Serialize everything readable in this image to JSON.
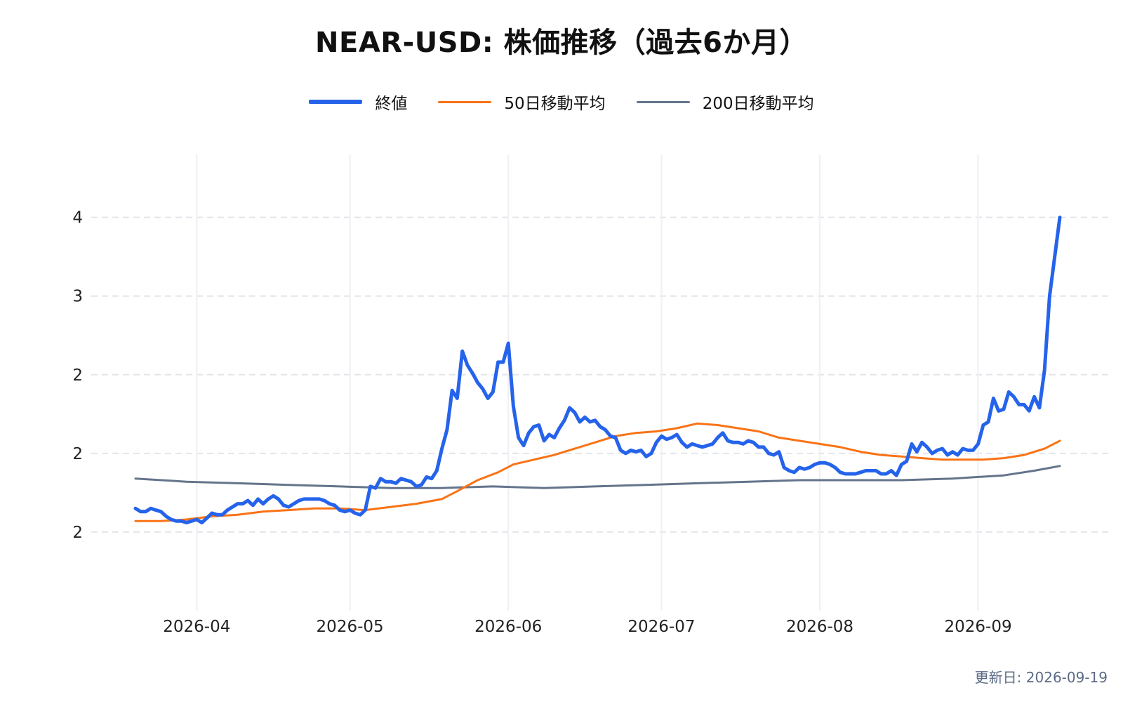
{
  "title": "NEAR-USD: 株価推移（過去6か月）",
  "updated": "更新日: 2026-09-19",
  "legend": [
    {
      "label": "終値",
      "color": "#2563eb"
    },
    {
      "label": "50日移動平均",
      "color": "#f97316"
    },
    {
      "label": "200日移動平均",
      "color": "#64748b"
    }
  ],
  "chart_data": {
    "type": "line",
    "title": "NEAR-USD: 株価推移（過去6か月）",
    "xlabel": "",
    "ylabel": "",
    "x_ticks": [
      "2026-04",
      "2026-05",
      "2026-06",
      "2026-07",
      "2026-08",
      "2026-09"
    ],
    "y_tick_labels": [
      "2",
      "2",
      "2",
      "3",
      "4"
    ],
    "y_tick_values": [
      1.5,
      2.0,
      2.5,
      3.0,
      3.5
    ],
    "ylim": [
      1.0,
      3.9
    ],
    "grid": true,
    "legend_position": "top-center",
    "series": [
      {
        "name": "終値",
        "color": "#2563eb",
        "points": [
          [
            "2026-03-20",
            1.65
          ],
          [
            "2026-03-21",
            1.63
          ],
          [
            "2026-03-22",
            1.63
          ],
          [
            "2026-03-23",
            1.65
          ],
          [
            "2026-03-24",
            1.64
          ],
          [
            "2026-03-25",
            1.63
          ],
          [
            "2026-03-26",
            1.6
          ],
          [
            "2026-03-27",
            1.58
          ],
          [
            "2026-03-28",
            1.57
          ],
          [
            "2026-03-29",
            1.57
          ],
          [
            "2026-03-30",
            1.56
          ],
          [
            "2026-03-31",
            1.57
          ],
          [
            "2026-04-01",
            1.58
          ],
          [
            "2026-04-02",
            1.56
          ],
          [
            "2026-04-03",
            1.59
          ],
          [
            "2026-04-04",
            1.62
          ],
          [
            "2026-04-05",
            1.61
          ],
          [
            "2026-04-06",
            1.61
          ],
          [
            "2026-04-07",
            1.64
          ],
          [
            "2026-04-08",
            1.66
          ],
          [
            "2026-04-09",
            1.68
          ],
          [
            "2026-04-10",
            1.68
          ],
          [
            "2026-04-11",
            1.7
          ],
          [
            "2026-04-12",
            1.67
          ],
          [
            "2026-04-13",
            1.71
          ],
          [
            "2026-04-14",
            1.68
          ],
          [
            "2026-04-15",
            1.71
          ],
          [
            "2026-04-16",
            1.73
          ],
          [
            "2026-04-17",
            1.71
          ],
          [
            "2026-04-18",
            1.67
          ],
          [
            "2026-04-19",
            1.66
          ],
          [
            "2026-04-20",
            1.68
          ],
          [
            "2026-04-21",
            1.7
          ],
          [
            "2026-04-22",
            1.71
          ],
          [
            "2026-04-23",
            1.71
          ],
          [
            "2026-04-24",
            1.71
          ],
          [
            "2026-04-25",
            1.71
          ],
          [
            "2026-04-26",
            1.7
          ],
          [
            "2026-04-27",
            1.68
          ],
          [
            "2026-04-28",
            1.67
          ],
          [
            "2026-04-29",
            1.64
          ],
          [
            "2026-04-30",
            1.63
          ],
          [
            "2026-05-01",
            1.64
          ],
          [
            "2026-05-02",
            1.62
          ],
          [
            "2026-05-03",
            1.61
          ],
          [
            "2026-05-04",
            1.64
          ],
          [
            "2026-05-05",
            1.79
          ],
          [
            "2026-05-06",
            1.78
          ],
          [
            "2026-05-07",
            1.84
          ],
          [
            "2026-05-08",
            1.82
          ],
          [
            "2026-05-09",
            1.82
          ],
          [
            "2026-05-10",
            1.81
          ],
          [
            "2026-05-11",
            1.84
          ],
          [
            "2026-05-12",
            1.83
          ],
          [
            "2026-05-13",
            1.82
          ],
          [
            "2026-05-14",
            1.79
          ],
          [
            "2026-05-15",
            1.8
          ],
          [
            "2026-05-16",
            1.85
          ],
          [
            "2026-05-17",
            1.84
          ],
          [
            "2026-05-18",
            1.89
          ],
          [
            "2026-05-19",
            2.03
          ],
          [
            "2026-05-20",
            2.15
          ],
          [
            "2026-05-21",
            2.4
          ],
          [
            "2026-05-22",
            2.35
          ],
          [
            "2026-05-23",
            2.65
          ],
          [
            "2026-05-24",
            2.56
          ],
          [
            "2026-05-25",
            2.51
          ],
          [
            "2026-05-26",
            2.45
          ],
          [
            "2026-05-27",
            2.41
          ],
          [
            "2026-05-28",
            2.35
          ],
          [
            "2026-05-29",
            2.39
          ],
          [
            "2026-05-30",
            2.58
          ],
          [
            "2026-05-31",
            2.58
          ],
          [
            "2026-06-01",
            2.7
          ],
          [
            "2026-06-02",
            2.3
          ],
          [
            "2026-06-03",
            2.1
          ],
          [
            "2026-06-04",
            2.05
          ],
          [
            "2026-06-05",
            2.13
          ],
          [
            "2026-06-06",
            2.17
          ],
          [
            "2026-06-07",
            2.18
          ],
          [
            "2026-06-08",
            2.08
          ],
          [
            "2026-06-09",
            2.12
          ],
          [
            "2026-06-10",
            2.1
          ],
          [
            "2026-06-11",
            2.16
          ],
          [
            "2026-06-12",
            2.21
          ],
          [
            "2026-06-13",
            2.29
          ],
          [
            "2026-06-14",
            2.26
          ],
          [
            "2026-06-15",
            2.2
          ],
          [
            "2026-06-16",
            2.23
          ],
          [
            "2026-06-17",
            2.2
          ],
          [
            "2026-06-18",
            2.21
          ],
          [
            "2026-06-19",
            2.17
          ],
          [
            "2026-06-20",
            2.15
          ],
          [
            "2026-06-21",
            2.11
          ],
          [
            "2026-06-22",
            2.1
          ],
          [
            "2026-06-23",
            2.02
          ],
          [
            "2026-06-24",
            2.0
          ],
          [
            "2026-06-25",
            2.02
          ],
          [
            "2026-06-26",
            2.01
          ],
          [
            "2026-06-27",
            2.02
          ],
          [
            "2026-06-28",
            1.98
          ],
          [
            "2026-06-29",
            2.0
          ],
          [
            "2026-06-30",
            2.07
          ],
          [
            "2026-07-01",
            2.11
          ],
          [
            "2026-07-02",
            2.09
          ],
          [
            "2026-07-03",
            2.1
          ],
          [
            "2026-07-04",
            2.12
          ],
          [
            "2026-07-05",
            2.07
          ],
          [
            "2026-07-06",
            2.04
          ],
          [
            "2026-07-07",
            2.06
          ],
          [
            "2026-07-08",
            2.05
          ],
          [
            "2026-07-09",
            2.04
          ],
          [
            "2026-07-10",
            2.05
          ],
          [
            "2026-07-11",
            2.06
          ],
          [
            "2026-07-12",
            2.1
          ],
          [
            "2026-07-13",
            2.13
          ],
          [
            "2026-07-14",
            2.08
          ],
          [
            "2026-07-15",
            2.07
          ],
          [
            "2026-07-16",
            2.07
          ],
          [
            "2026-07-17",
            2.06
          ],
          [
            "2026-07-18",
            2.08
          ],
          [
            "2026-07-19",
            2.07
          ],
          [
            "2026-07-20",
            2.04
          ],
          [
            "2026-07-21",
            2.04
          ],
          [
            "2026-07-22",
            2.0
          ],
          [
            "2026-07-23",
            1.99
          ],
          [
            "2026-07-24",
            2.01
          ],
          [
            "2026-07-25",
            1.91
          ],
          [
            "2026-07-26",
            1.89
          ],
          [
            "2026-07-27",
            1.88
          ],
          [
            "2026-07-28",
            1.91
          ],
          [
            "2026-07-29",
            1.9
          ],
          [
            "2026-07-30",
            1.91
          ],
          [
            "2026-07-31",
            1.93
          ],
          [
            "2026-08-01",
            1.94
          ],
          [
            "2026-08-02",
            1.94
          ],
          [
            "2026-08-03",
            1.93
          ],
          [
            "2026-08-04",
            1.91
          ],
          [
            "2026-08-05",
            1.88
          ],
          [
            "2026-08-06",
            1.87
          ],
          [
            "2026-08-07",
            1.87
          ],
          [
            "2026-08-08",
            1.87
          ],
          [
            "2026-08-09",
            1.88
          ],
          [
            "2026-08-10",
            1.89
          ],
          [
            "2026-08-11",
            1.89
          ],
          [
            "2026-08-12",
            1.89
          ],
          [
            "2026-08-13",
            1.87
          ],
          [
            "2026-08-14",
            1.87
          ],
          [
            "2026-08-15",
            1.89
          ],
          [
            "2026-08-16",
            1.86
          ],
          [
            "2026-08-17",
            1.93
          ],
          [
            "2026-08-18",
            1.95
          ],
          [
            "2026-08-19",
            2.06
          ],
          [
            "2026-08-20",
            2.01
          ],
          [
            "2026-08-21",
            2.07
          ],
          [
            "2026-08-22",
            2.04
          ],
          [
            "2026-08-23",
            2.0
          ],
          [
            "2026-08-24",
            2.02
          ],
          [
            "2026-08-25",
            2.03
          ],
          [
            "2026-08-26",
            1.99
          ],
          [
            "2026-08-27",
            2.01
          ],
          [
            "2026-08-28",
            1.99
          ],
          [
            "2026-08-29",
            2.03
          ],
          [
            "2026-08-30",
            2.02
          ],
          [
            "2026-08-31",
            2.02
          ],
          [
            "2026-09-01",
            2.06
          ],
          [
            "2026-09-02",
            2.18
          ],
          [
            "2026-09-03",
            2.2
          ],
          [
            "2026-09-04",
            2.35
          ],
          [
            "2026-09-05",
            2.27
          ],
          [
            "2026-09-06",
            2.28
          ],
          [
            "2026-09-07",
            2.39
          ],
          [
            "2026-09-08",
            2.36
          ],
          [
            "2026-09-09",
            2.31
          ],
          [
            "2026-09-10",
            2.31
          ],
          [
            "2026-09-11",
            2.27
          ],
          [
            "2026-09-12",
            2.36
          ],
          [
            "2026-09-13",
            2.29
          ],
          [
            "2026-09-14",
            2.53
          ],
          [
            "2026-09-15",
            3.0
          ],
          [
            "2026-09-16",
            3.25
          ],
          [
            "2026-09-17",
            3.5
          ]
        ]
      },
      {
        "name": "50日移動平均",
        "color": "#f97316",
        "points": [
          [
            "2026-03-20",
            1.57
          ],
          [
            "2026-03-25",
            1.57
          ],
          [
            "2026-03-30",
            1.58
          ],
          [
            "2026-04-04",
            1.6
          ],
          [
            "2026-04-09",
            1.61
          ],
          [
            "2026-04-14",
            1.63
          ],
          [
            "2026-04-19",
            1.64
          ],
          [
            "2026-04-24",
            1.65
          ],
          [
            "2026-04-29",
            1.65
          ],
          [
            "2026-05-04",
            1.64
          ],
          [
            "2026-05-09",
            1.66
          ],
          [
            "2026-05-14",
            1.68
          ],
          [
            "2026-05-19",
            1.71
          ],
          [
            "2026-05-22",
            1.76
          ],
          [
            "2026-05-26",
            1.83
          ],
          [
            "2026-05-30",
            1.88
          ],
          [
            "2026-06-02",
            1.93
          ],
          [
            "2026-06-06",
            1.96
          ],
          [
            "2026-06-10",
            1.99
          ],
          [
            "2026-06-14",
            2.03
          ],
          [
            "2026-06-18",
            2.07
          ],
          [
            "2026-06-22",
            2.11
          ],
          [
            "2026-06-26",
            2.13
          ],
          [
            "2026-06-30",
            2.14
          ],
          [
            "2026-07-04",
            2.16
          ],
          [
            "2026-07-08",
            2.19
          ],
          [
            "2026-07-12",
            2.18
          ],
          [
            "2026-07-16",
            2.16
          ],
          [
            "2026-07-20",
            2.14
          ],
          [
            "2026-07-24",
            2.1
          ],
          [
            "2026-07-28",
            2.08
          ],
          [
            "2026-08-01",
            2.06
          ],
          [
            "2026-08-05",
            2.04
          ],
          [
            "2026-08-09",
            2.01
          ],
          [
            "2026-08-13",
            1.99
          ],
          [
            "2026-08-17",
            1.98
          ],
          [
            "2026-08-21",
            1.97
          ],
          [
            "2026-08-25",
            1.96
          ],
          [
            "2026-08-29",
            1.96
          ],
          [
            "2026-09-02",
            1.96
          ],
          [
            "2026-09-06",
            1.97
          ],
          [
            "2026-09-10",
            1.99
          ],
          [
            "2026-09-14",
            2.03
          ],
          [
            "2026-09-17",
            2.08
          ]
        ]
      },
      {
        "name": "200日移動平均",
        "color": "#64748b",
        "points": [
          [
            "2026-03-20",
            1.84
          ],
          [
            "2026-03-30",
            1.82
          ],
          [
            "2026-04-09",
            1.81
          ],
          [
            "2026-04-19",
            1.8
          ],
          [
            "2026-04-29",
            1.79
          ],
          [
            "2026-05-09",
            1.78
          ],
          [
            "2026-05-19",
            1.78
          ],
          [
            "2026-05-29",
            1.79
          ],
          [
            "2026-06-08",
            1.78
          ],
          [
            "2026-06-18",
            1.79
          ],
          [
            "2026-06-28",
            1.8
          ],
          [
            "2026-07-08",
            1.81
          ],
          [
            "2026-07-18",
            1.82
          ],
          [
            "2026-07-28",
            1.83
          ],
          [
            "2026-08-07",
            1.83
          ],
          [
            "2026-08-17",
            1.83
          ],
          [
            "2026-08-27",
            1.84
          ],
          [
            "2026-09-06",
            1.86
          ],
          [
            "2026-09-12",
            1.89
          ],
          [
            "2026-09-17",
            1.92
          ]
        ]
      }
    ]
  }
}
